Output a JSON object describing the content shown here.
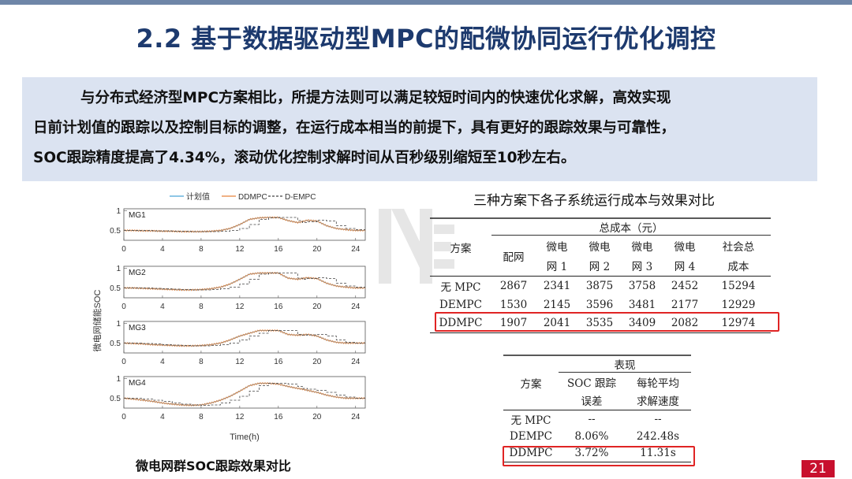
{
  "page": {
    "title": "2.2 基于数据驱动型MPC的配微协同运行优化调控",
    "page_number": "21"
  },
  "summary": {
    "line1": "与分布式经济型MPC方案相比，所提方法则可以满足较短时间内的快速优化求解，高效实现",
    "line2": "日前计划值的跟踪以及控制目标的调整，在运行成本相当的前提下，具有更好的跟踪效果与可靠性，",
    "line3": "SOC跟踪精度提高了4.34%，滚动优化控制求解时间从百秒级别缩短至10秒左右。"
  },
  "figure": {
    "caption": "微电网群SOC跟踪效果对比"
  },
  "chart_data": {
    "type": "line",
    "xlabel": "Time(h)",
    "ylabel": "微电网储能SOC",
    "xlim": [
      0,
      25
    ],
    "ylim": [
      0.25,
      1.05
    ],
    "xticks": [
      0,
      4,
      8,
      12,
      16,
      20,
      24
    ],
    "yticks": [
      0.5,
      1
    ],
    "legend": [
      "计划值",
      "DDMPC",
      "D-EMPC"
    ],
    "legend_position": "top",
    "series_colors": {
      "计划值": "#4aa3d8",
      "DDMPC": "#e8823a",
      "D-EMPC": "#444444"
    },
    "x": [
      0,
      1,
      2,
      3,
      4,
      5,
      6,
      7,
      8,
      9,
      10,
      11,
      12,
      13,
      14,
      15,
      16,
      17,
      18,
      18.5,
      19,
      20,
      21,
      22,
      23,
      24,
      25
    ],
    "subplots": [
      {
        "name": "MG1",
        "plan": [
          0.5,
          0.5,
          0.49,
          0.49,
          0.48,
          0.48,
          0.47,
          0.47,
          0.47,
          0.48,
          0.5,
          0.55,
          0.65,
          0.78,
          0.82,
          0.83,
          0.83,
          0.75,
          0.7,
          0.72,
          0.76,
          0.74,
          0.62,
          0.55,
          0.52,
          0.5,
          0.5
        ]
      },
      {
        "name": "MG2",
        "plan": [
          0.5,
          0.5,
          0.49,
          0.48,
          0.47,
          0.46,
          0.45,
          0.45,
          0.46,
          0.48,
          0.52,
          0.6,
          0.72,
          0.85,
          0.88,
          0.88,
          0.88,
          0.75,
          0.72,
          0.74,
          0.76,
          0.74,
          0.62,
          0.55,
          0.52,
          0.5,
          0.5
        ]
      },
      {
        "name": "MG3",
        "plan": [
          0.5,
          0.49,
          0.48,
          0.46,
          0.45,
          0.44,
          0.43,
          0.43,
          0.44,
          0.46,
          0.5,
          0.58,
          0.68,
          0.75,
          0.82,
          0.82,
          0.82,
          0.72,
          0.7,
          0.71,
          0.72,
          0.68,
          0.58,
          0.52,
          0.5,
          0.5,
          0.5
        ]
      },
      {
        "name": "MG4",
        "plan": [
          0.5,
          0.48,
          0.45,
          0.42,
          0.38,
          0.35,
          0.33,
          0.32,
          0.33,
          0.38,
          0.45,
          0.55,
          0.68,
          0.82,
          0.88,
          0.88,
          0.86,
          0.8,
          0.75,
          0.73,
          0.7,
          0.65,
          0.58,
          0.53,
          0.5,
          0.5,
          0.5
        ]
      }
    ]
  },
  "table1": {
    "title": "三种方案下各子系统运行成本与效果对比",
    "col_scheme": "方案",
    "group_header": "总成本（元）",
    "col_grid": "配网",
    "subcols": [
      {
        "l1": "微电",
        "l2": "网 1"
      },
      {
        "l1": "微电",
        "l2": "网 2"
      },
      {
        "l1": "微电",
        "l2": "网 3"
      },
      {
        "l1": "微电",
        "l2": "网 4"
      },
      {
        "l1": "社会总",
        "l2": "成本"
      }
    ],
    "rows": [
      {
        "name": "无 MPC",
        "values": [
          "2867",
          "2341",
          "3875",
          "3758",
          "2452",
          "15294"
        ]
      },
      {
        "name": "DEMPC",
        "values": [
          "1530",
          "2145",
          "3596",
          "3481",
          "2177",
          "12929"
        ]
      },
      {
        "name": "DDMPC",
        "values": [
          "1907",
          "2041",
          "3535",
          "3409",
          "2082",
          "12974"
        ]
      }
    ]
  },
  "table2": {
    "col_scheme": "方案",
    "group_header": "表现",
    "sub1_l1": "SOC 跟踪",
    "sub1_l2": "误差",
    "sub2_l1": "每轮平均",
    "sub2_l2": "求解速度",
    "rows": [
      {
        "name": "无 MPC",
        "values": [
          "--",
          "--"
        ]
      },
      {
        "name": "DEMPC",
        "values": [
          "8.06%",
          "242.48s"
        ]
      },
      {
        "name": "DDMPC",
        "values": [
          "3.72%",
          "11.31s"
        ]
      }
    ]
  }
}
